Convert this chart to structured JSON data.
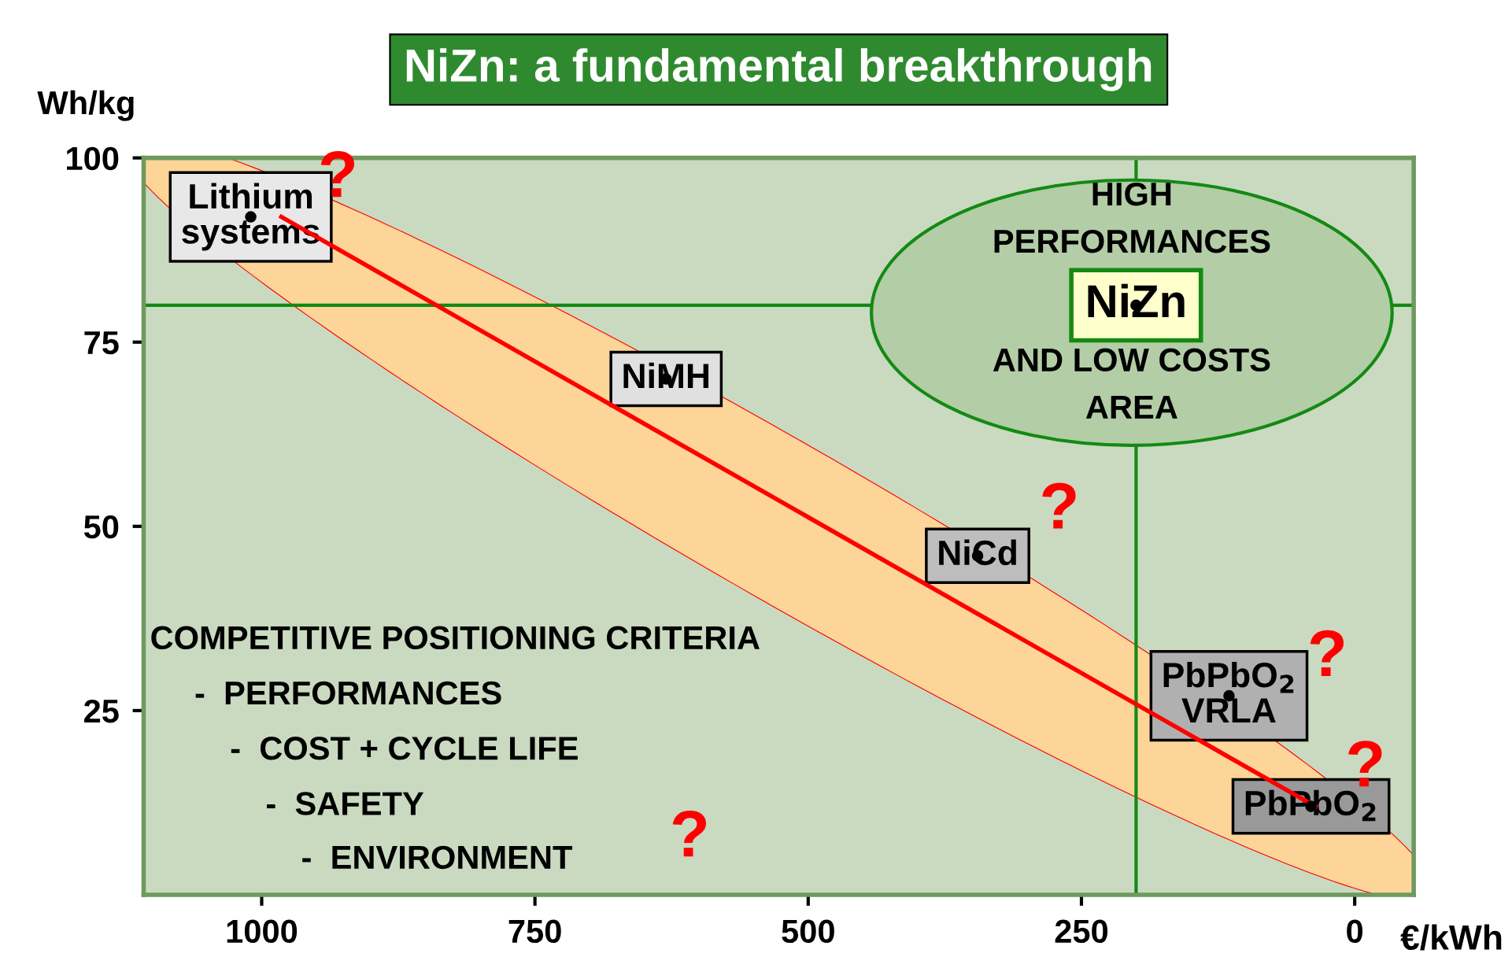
{
  "chart_data": {
    "type": "scatter",
    "title": "NiZn: a fundamental breakthrough",
    "xlabel": "€/kWh",
    "ylabel": "Wh/kg",
    "xlim": [
      1108,
      -54
    ],
    "xticks": [
      1000,
      750,
      500,
      250,
      0
    ],
    "ylim": [
      0,
      100
    ],
    "yticks": [
      25,
      50,
      75,
      100
    ],
    "grid": false,
    "marker": "circle",
    "series": [
      {
        "color": "#000000",
        "x": [
          1010,
          630,
          345,
          115,
          40,
          200
        ],
        "values": [
          92,
          70,
          46,
          27,
          12,
          80
        ]
      },
      {
        "type": "line",
        "marker": "none",
        "color": "#ff0000",
        "x": [
          982,
          36
        ],
        "values": [
          92,
          12
        ]
      }
    ],
    "ref_lines": [
      {
        "axis": "y",
        "value": 80,
        "color": "#138a13"
      },
      {
        "axis": "x",
        "value": 200,
        "color": "#138a13"
      }
    ],
    "annotations": [
      "HIGH\nPERFORMANCES",
      "AND LOW COSTS\nAREA",
      "COMPETITIVE POSITIONING CRITERIA",
      "-  PERFORMANCES",
      "-  COST + CYCLE LIFE",
      "-  SAFETY",
      "-  ENVIRONMENT",
      "?",
      {
        "text": "Lithium\nsystems",
        "x": 1010,
        "y": 92
      },
      {
        "text": "NiMH",
        "x": 630,
        "y": 70
      },
      {
        "text": "NiCd",
        "x": 345,
        "y": 46
      },
      {
        "text": "PbPbO$_{2}$\nVRLA",
        "x": 115,
        "y": 27
      },
      {
        "text": "PbPbO$_{2}$",
        "x": 40,
        "y": 12
      },
      {
        "text": "NiZn",
        "x": 200,
        "y": 80
      },
      "?",
      "?",
      "?",
      "?"
    ]
  }
}
